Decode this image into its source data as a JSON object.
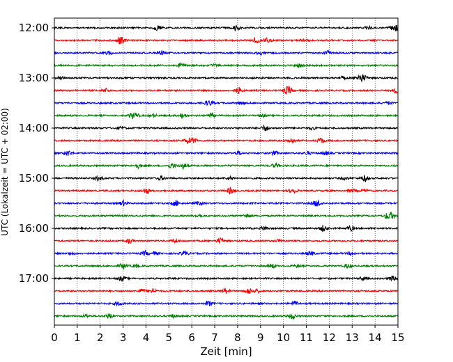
{
  "chart_data": {
    "type": "line",
    "title": "",
    "xlabel": "Zeit  [min]",
    "ylabel": "UTC (Lokalzeit = UTC + 02:00)",
    "xlim": [
      0,
      15
    ],
    "x_ticks": [
      "0",
      "1",
      "2",
      "3",
      "4",
      "5",
      "6",
      "7",
      "8",
      "9",
      "10",
      "11",
      "12",
      "13",
      "14",
      "15"
    ],
    "y_ticks": [
      "12:00",
      "13:00",
      "14:00",
      "15:00",
      "16:00",
      "17:00"
    ],
    "grid": "vertical dotted",
    "trace_interval_minutes": 15,
    "trace_count": 24,
    "first_trace": "12:00",
    "last_trace": "17:45",
    "trace_colors": [
      "#000000",
      "#ff0000",
      "#0000ff",
      "#008000"
    ]
  }
}
